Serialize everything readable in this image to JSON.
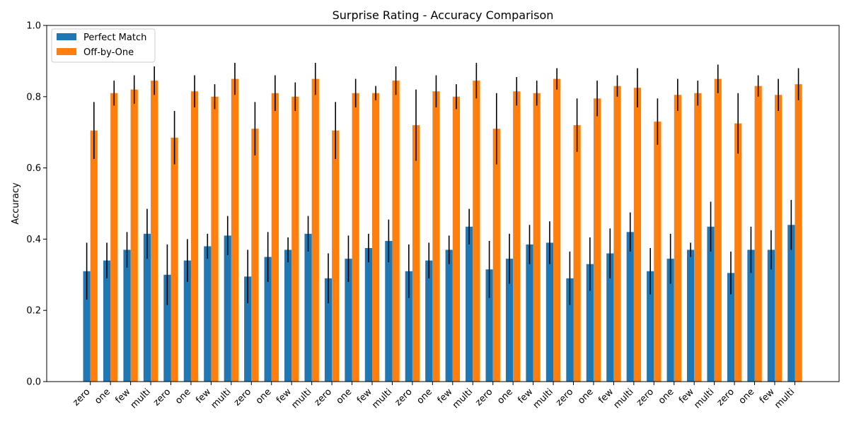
{
  "chart_data": {
    "type": "bar",
    "title": "Surprise Rating - Accuracy Comparison",
    "xlabel": "",
    "ylabel": "Accuracy",
    "ylim": [
      0,
      1.0
    ],
    "yticks": [
      "0.0",
      "0.2",
      "0.4",
      "0.6",
      "0.8",
      "1.0"
    ],
    "ytick_values": [
      0,
      0.2,
      0.4,
      0.6,
      0.8,
      1.0
    ],
    "grid": false,
    "legend": "top-left",
    "categories": [
      "zero",
      "one",
      "few",
      "multi",
      "zero",
      "one",
      "few",
      "multi",
      "zero",
      "one",
      "few",
      "multi",
      "zero",
      "one",
      "few",
      "multi",
      "zero",
      "one",
      "few",
      "multi",
      "zero",
      "one",
      "few",
      "multi",
      "zero",
      "one",
      "few",
      "multi",
      "zero",
      "one",
      "few",
      "multi",
      "zero",
      "one",
      "few",
      "multi"
    ],
    "series": [
      {
        "name": "Perfect Match",
        "color": "#1f77b4",
        "values": [
          0.31,
          0.34,
          0.37,
          0.415,
          0.3,
          0.34,
          0.38,
          0.41,
          0.295,
          0.35,
          0.37,
          0.415,
          0.29,
          0.345,
          0.375,
          0.395,
          0.31,
          0.34,
          0.37,
          0.435,
          0.315,
          0.345,
          0.385,
          0.39,
          0.29,
          0.33,
          0.36,
          0.42,
          0.31,
          0.345,
          0.37,
          0.435,
          0.305,
          0.37,
          0.37,
          0.44
        ],
        "errors": [
          0.08,
          0.05,
          0.05,
          0.07,
          0.085,
          0.06,
          0.035,
          0.055,
          0.075,
          0.07,
          0.035,
          0.05,
          0.07,
          0.065,
          0.04,
          0.06,
          0.075,
          0.05,
          0.04,
          0.05,
          0.08,
          0.07,
          0.055,
          0.06,
          0.075,
          0.075,
          0.07,
          0.055,
          0.065,
          0.07,
          0.02,
          0.07,
          0.06,
          0.065,
          0.055,
          0.07
        ]
      },
      {
        "name": "Off-by-One",
        "color": "#ff7f0e",
        "values": [
          0.705,
          0.81,
          0.82,
          0.845,
          0.685,
          0.815,
          0.8,
          0.85,
          0.71,
          0.81,
          0.8,
          0.85,
          0.705,
          0.81,
          0.81,
          0.845,
          0.72,
          0.815,
          0.8,
          0.845,
          0.71,
          0.815,
          0.81,
          0.85,
          0.72,
          0.795,
          0.83,
          0.825,
          0.73,
          0.805,
          0.81,
          0.85,
          0.725,
          0.83,
          0.805,
          0.835
        ],
        "errors": [
          0.08,
          0.035,
          0.04,
          0.04,
          0.075,
          0.045,
          0.035,
          0.045,
          0.075,
          0.05,
          0.04,
          0.045,
          0.08,
          0.04,
          0.02,
          0.04,
          0.1,
          0.045,
          0.035,
          0.05,
          0.1,
          0.04,
          0.035,
          0.03,
          0.075,
          0.05,
          0.03,
          0.055,
          0.065,
          0.045,
          0.035,
          0.04,
          0.085,
          0.03,
          0.045,
          0.045
        ]
      }
    ]
  }
}
